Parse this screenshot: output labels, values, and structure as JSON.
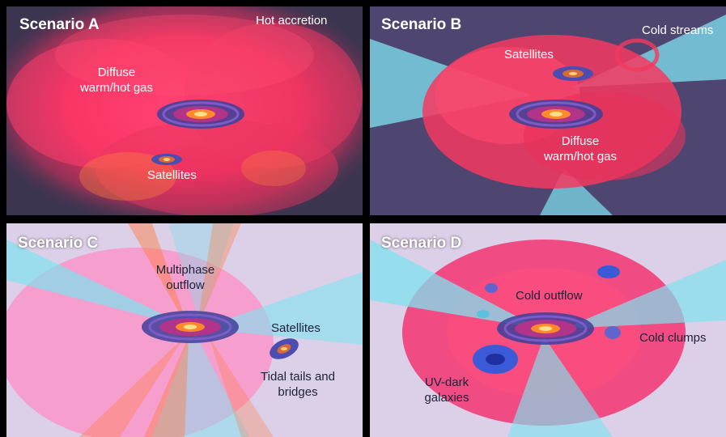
{
  "panels": {
    "a": {
      "title": "Scenario A",
      "labels": {
        "hot_accretion": "Hot accretion",
        "diffuse_gas": "Diffuse\nwarm/hot gas",
        "satellites": "Satellites"
      }
    },
    "b": {
      "title": "Scenario B",
      "labels": {
        "cold_streams": "Cold streams",
        "satellites": "Satellites",
        "diffuse_gas": "Diffuse\nwarm/hot gas"
      }
    },
    "c": {
      "title": "Scenario C",
      "labels": {
        "outflow": "Multiphase\noutflow",
        "satellites": "Satellites",
        "tidal": "Tidal tails and\nbridges"
      }
    },
    "d": {
      "title": "Scenario D",
      "labels": {
        "cold_outflow": "Cold outflow",
        "cold_clumps": "Cold clumps",
        "uv_dark": "UV-dark\ngalaxies"
      }
    }
  },
  "colors": {
    "hot_gas": "#ff3c6e",
    "cold_gas": "#7fe3f0",
    "background_dark": "#3a3450",
    "background_light": "#d9cfe6",
    "outflow_orange": "#ff7a3a",
    "label_light": "#ffffff",
    "label_dark": "#1c2238"
  }
}
